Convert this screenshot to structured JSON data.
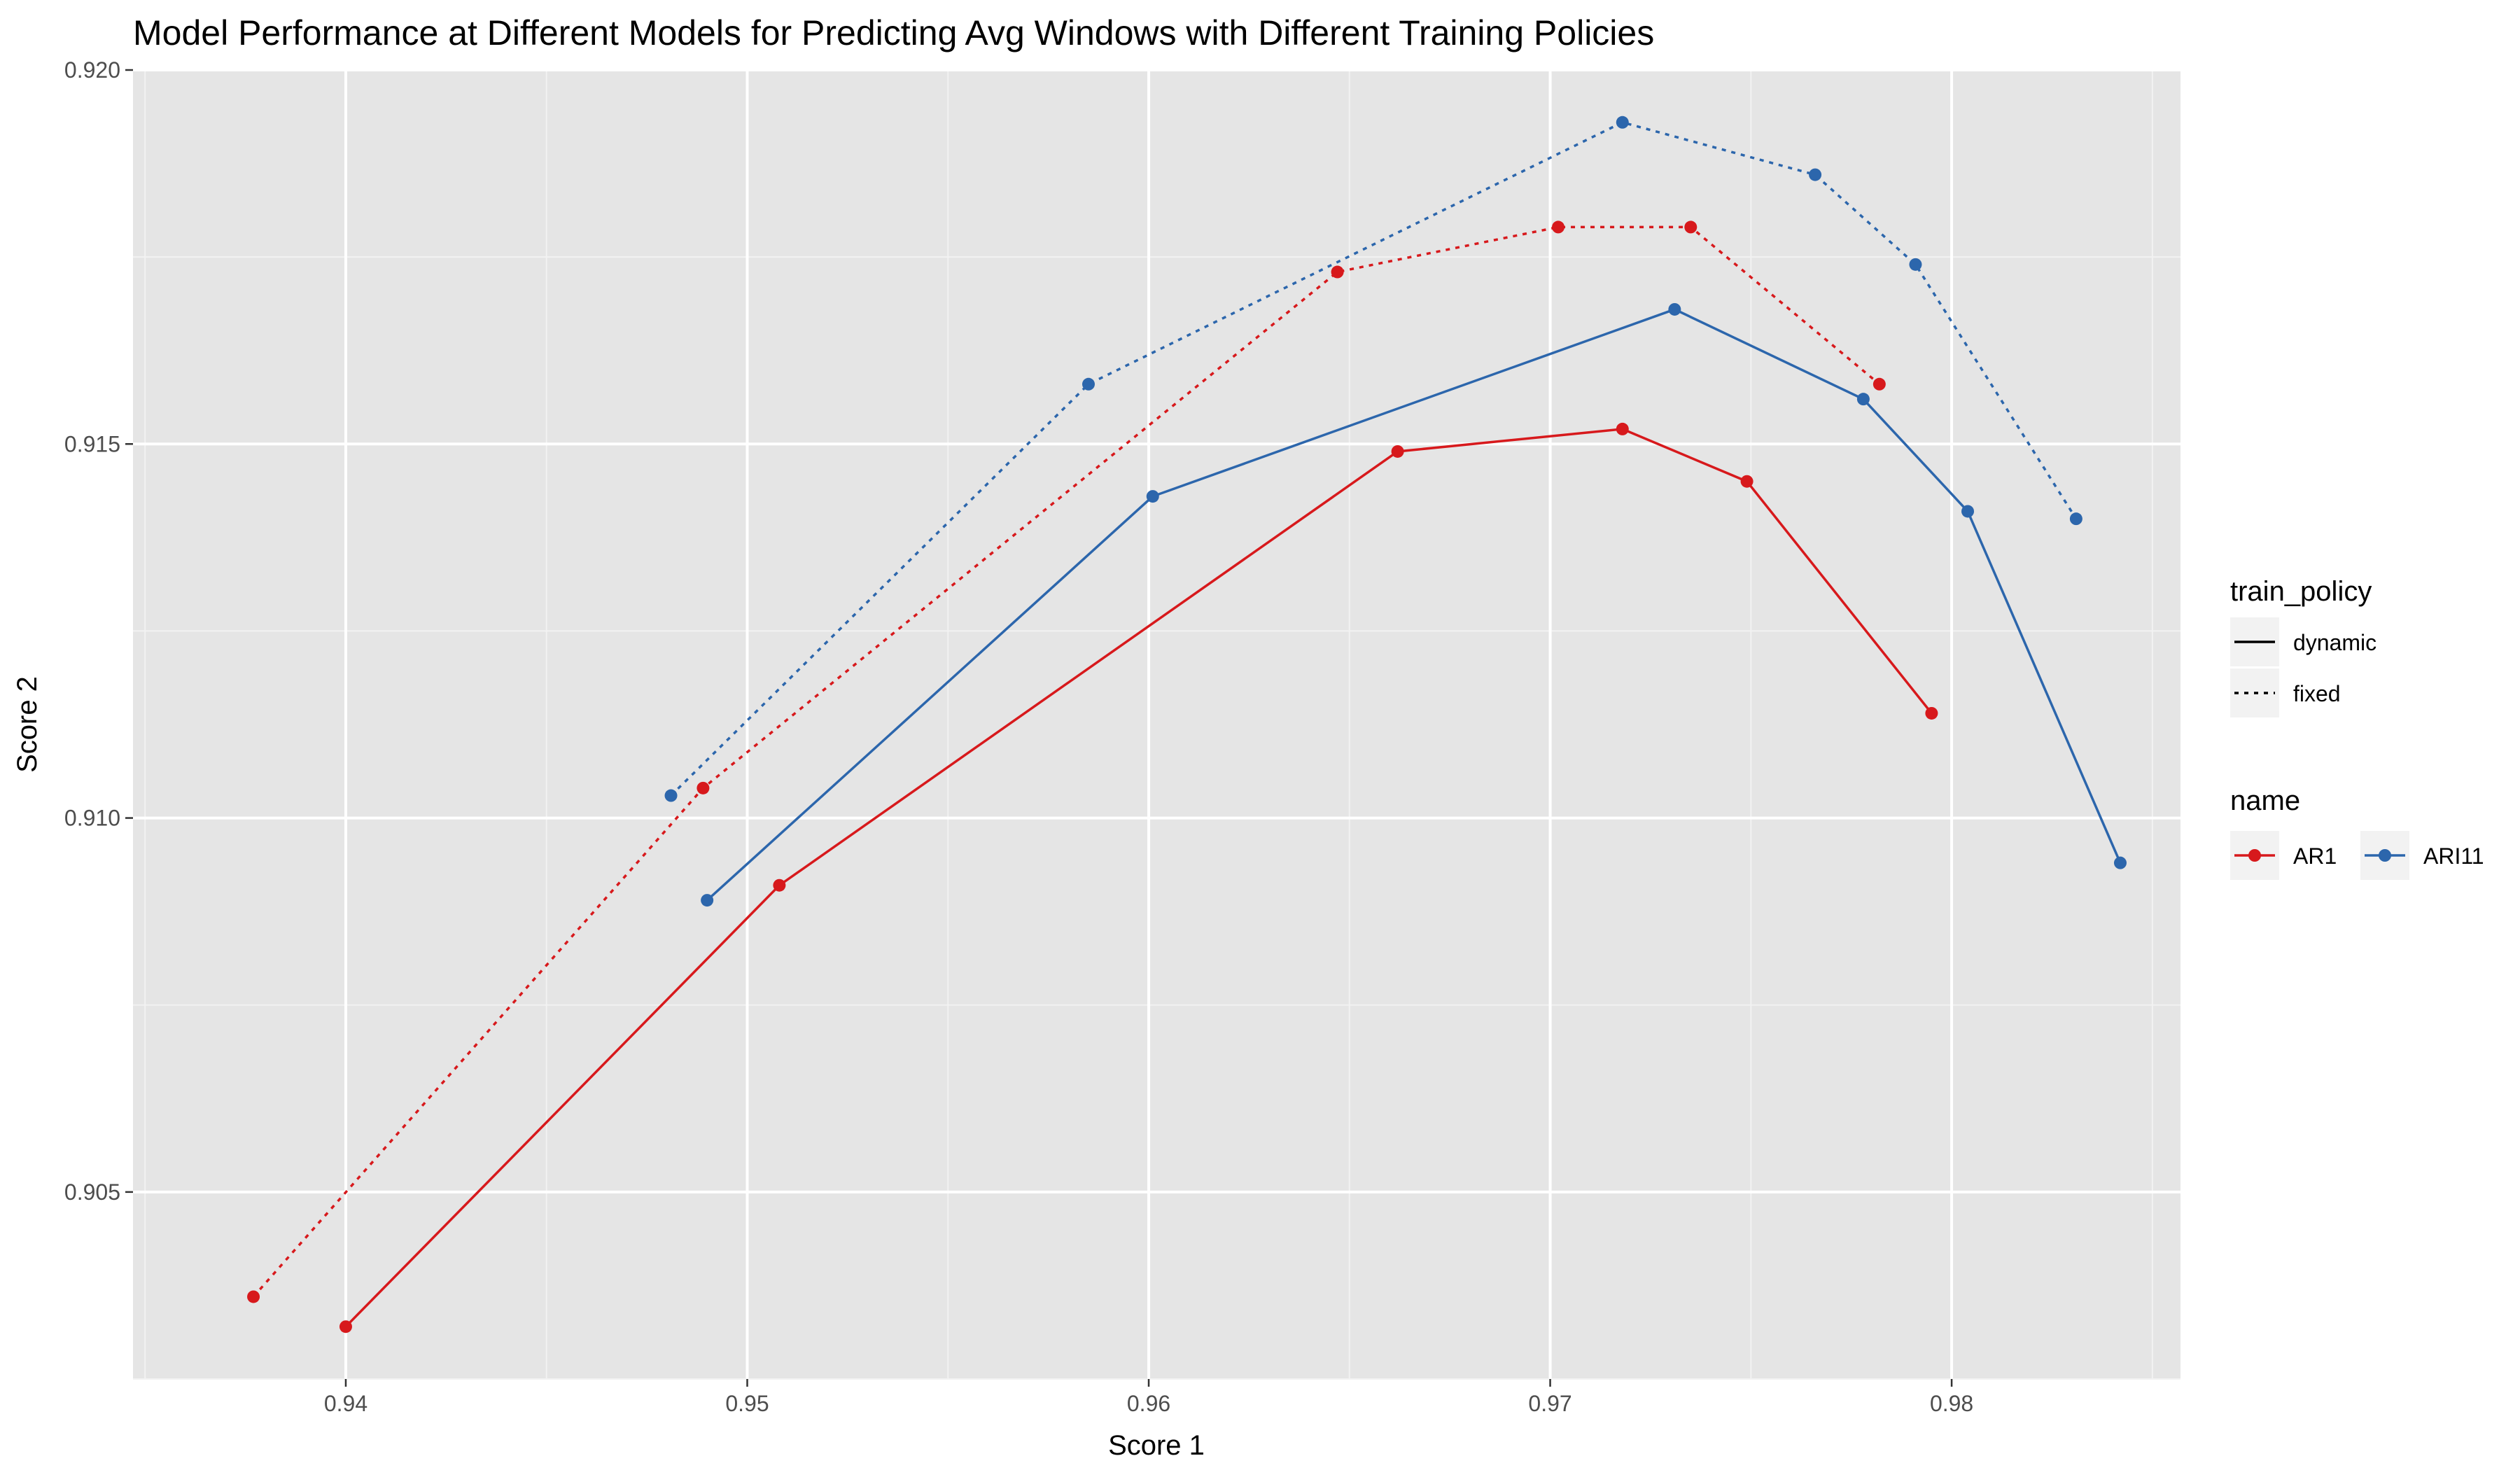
{
  "chart_data": {
    "type": "line",
    "title": "Model Performance at Different Models for Predicting Avg Windows with Different Training Policies",
    "xlabel": "Score 1",
    "ylabel": "Score 2",
    "xlim": [
      0.9347,
      0.9857
    ],
    "ylim": [
      0.9025,
      0.92
    ],
    "x_ticks": [
      0.94,
      0.95,
      0.96,
      0.97,
      0.98
    ],
    "x_tick_labels": [
      "0.94",
      "0.95",
      "0.96",
      "0.97",
      "0.98"
    ],
    "y_ticks": [
      0.905,
      0.91,
      0.915,
      0.92
    ],
    "y_tick_labels": [
      "0.905",
      "0.910",
      "0.915",
      "0.920"
    ],
    "grid": true,
    "legend_placement": "right",
    "legend": {
      "linetype_title": "train_policy",
      "linetype_entries": [
        {
          "label": "dynamic",
          "dash": "solid"
        },
        {
          "label": "fixed",
          "dash": "dotted"
        }
      ],
      "color_title": "name",
      "color_entries": [
        {
          "label": "AR1",
          "color": "#d7191c"
        },
        {
          "label": "ARI11",
          "color": "#2c66ac"
        }
      ]
    },
    "series": [
      {
        "name": "AR1",
        "train_policy": "fixed",
        "color": "#d7191c",
        "dash": "dotted",
        "points": [
          [
            0.9377,
            0.9036
          ],
          [
            0.9489,
            0.9104
          ],
          [
            0.9647,
            0.9173
          ],
          [
            0.9702,
            0.9179
          ],
          [
            0.9735,
            0.9179
          ],
          [
            0.9782,
            0.9158
          ]
        ]
      },
      {
        "name": "AR1",
        "train_policy": "dynamic",
        "color": "#d7191c",
        "dash": "solid",
        "points": [
          [
            0.94,
            0.9032
          ],
          [
            0.9508,
            0.9091
          ],
          [
            0.9662,
            0.9149
          ],
          [
            0.9718,
            0.9152
          ],
          [
            0.9749,
            0.9145
          ],
          [
            0.9795,
            0.9114
          ]
        ]
      },
      {
        "name": "ARI11",
        "train_policy": "fixed",
        "color": "#2c66ac",
        "dash": "dotted",
        "points": [
          [
            0.9481,
            0.9103
          ],
          [
            0.9585,
            0.9158
          ],
          [
            0.9718,
            0.9193
          ],
          [
            0.9766,
            0.9186
          ],
          [
            0.9791,
            0.9174
          ],
          [
            0.9831,
            0.914
          ]
        ]
      },
      {
        "name": "ARI11",
        "train_policy": "dynamic",
        "color": "#2c66ac",
        "dash": "solid",
        "points": [
          [
            0.949,
            0.9089
          ],
          [
            0.9601,
            0.9143
          ],
          [
            0.9731,
            0.9168
          ],
          [
            0.9778,
            0.9156
          ],
          [
            0.9804,
            0.9141
          ],
          [
            0.9842,
            0.9094
          ]
        ]
      }
    ]
  }
}
